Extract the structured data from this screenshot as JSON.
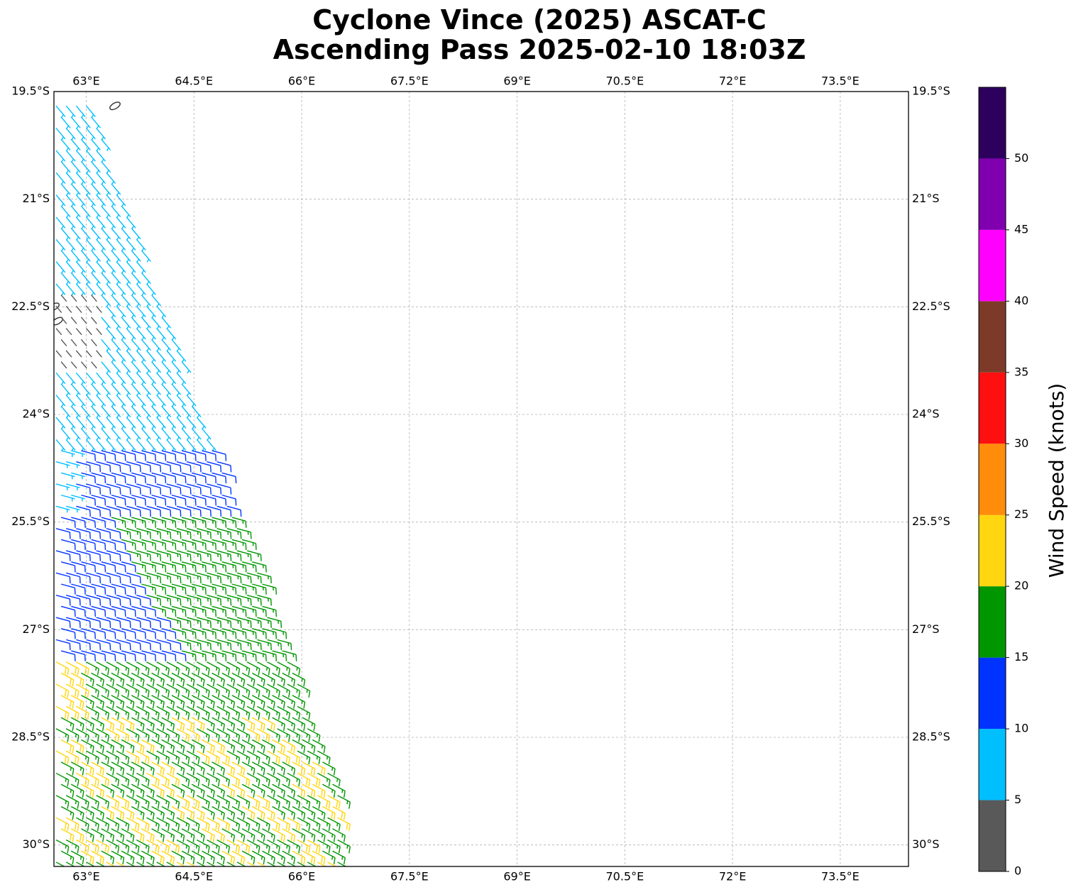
{
  "title_line1": "Cyclone Vince (2025) ASCAT-C",
  "title_line2": "Ascending Pass 2025-02-10 18:03Z",
  "chart_data": {
    "type": "map",
    "projection": "equirectangular",
    "lon_range": [
      62.55,
      74.45
    ],
    "lat_range": [
      -30.3,
      -19.5
    ],
    "grid": true,
    "lon_ticks": [
      63,
      64.5,
      66,
      67.5,
      69,
      70.5,
      72,
      73.5
    ],
    "lon_tick_labels": [
      "63°E",
      "64.5°E",
      "66°E",
      "67.5°E",
      "69°E",
      "70.5°E",
      "72°E",
      "73.5°E"
    ],
    "lat_ticks": [
      -19.5,
      -21,
      -22.5,
      -24,
      -25.5,
      -27,
      -28.5,
      -30
    ],
    "lat_tick_labels": [
      "19.5°S",
      "21°S",
      "22.5°S",
      "24°S",
      "25.5°S",
      "27°S",
      "28.5°S",
      "30°S"
    ],
    "colorbar": {
      "label": "Wind Speed (knots)",
      "bounds": [
        0,
        5,
        10,
        15,
        20,
        25,
        30,
        35,
        40,
        45,
        50,
        55
      ],
      "tick_labels": [
        "0",
        "5",
        "10",
        "15",
        "20",
        "25",
        "30",
        "35",
        "40",
        "45",
        "50"
      ],
      "colors": [
        "#595959",
        "#00bfff",
        "#0033ff",
        "#009600",
        "#ffd60f",
        "#ff8c0a",
        "#ff1010",
        "#7e3a28",
        "#ff00ff",
        "#8000b0",
        "#2e005e"
      ]
    },
    "swath": {
      "description_of_coverage": "wind barbs along western edge of domain",
      "regions": [
        {
          "lat_from": -19.7,
          "lat_to": -24.5,
          "speed_kt": 7,
          "direction_from_deg": 135
        },
        {
          "lat_from": -24.3,
          "lat_to": -27.5,
          "speed_kt": 12,
          "direction_from_deg": 110
        },
        {
          "lat_from": -25.5,
          "lat_to": -30.3,
          "speed_kt": 17,
          "direction_from_deg": 120
        },
        {
          "lat_from": -27.5,
          "lat_to": -30.3,
          "speed_kt": 22,
          "direction_from_deg": 115
        },
        {
          "lat_from": -22.3,
          "lat_to": -23.3,
          "speed_kt": 3,
          "direction_from_deg": 180
        }
      ]
    },
    "coastline": [
      {
        "name": "islet",
        "lon": 63.4,
        "lat": -19.7
      },
      {
        "name": "islet",
        "lon": 62.55,
        "lat": -22.5
      },
      {
        "name": "islet",
        "lon": 62.6,
        "lat": -22.7
      }
    ]
  }
}
